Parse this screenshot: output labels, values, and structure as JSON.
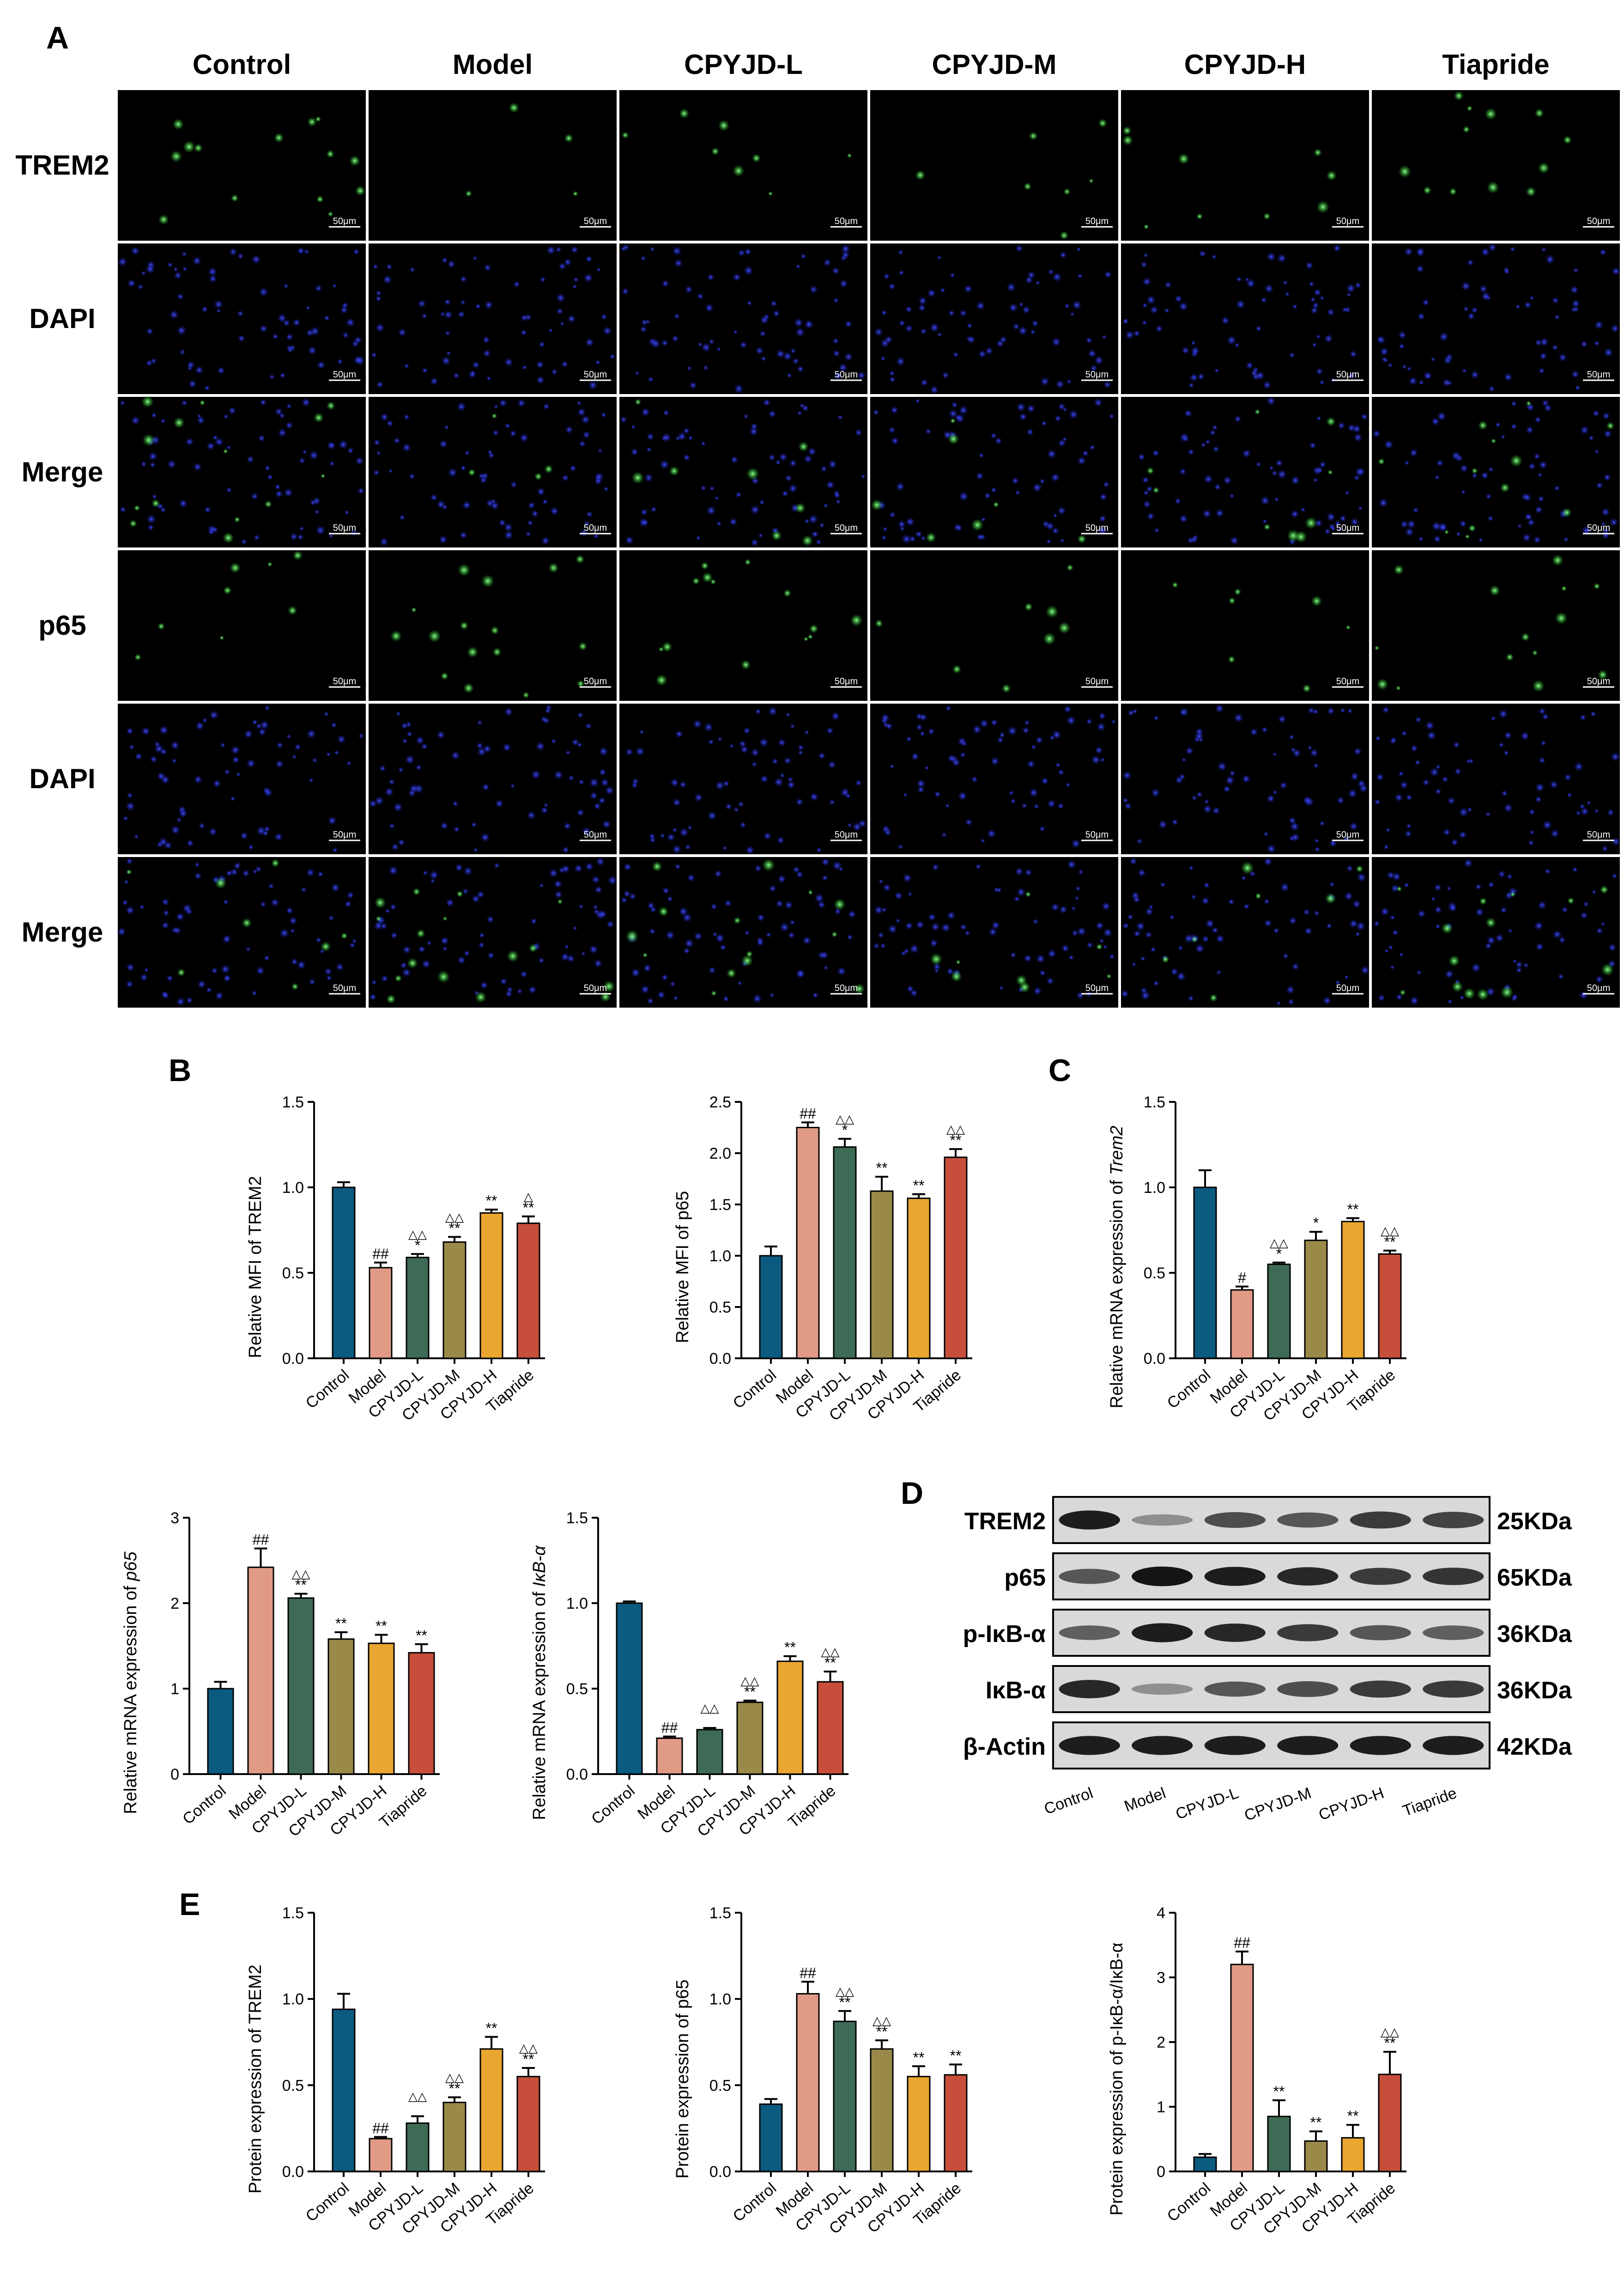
{
  "panels": {
    "A": "A",
    "B": "B",
    "C": "C",
    "D": "D",
    "E": "E"
  },
  "microscopy": {
    "columns": [
      "Control",
      "Model",
      "CPYJD-L",
      "CPYJD-M",
      "CPYJD-H",
      "Tiapride"
    ],
    "rows": [
      "TREM2",
      "DAPI",
      "Merge",
      "p65",
      "DAPI",
      "Merge"
    ],
    "scale_bar": "50μm"
  },
  "colors": {
    "Control": "#0b5a80",
    "Model": "#e19a86",
    "CPYJD-L": "#3d6b55",
    "CPYJD-M": "#9a8a4a",
    "CPYJD-H": "#e9a630",
    "Tiapride": "#c74e3a"
  },
  "western_blot": {
    "proteins": [
      "TREM2",
      "p65",
      "p-IκB-α",
      "IκB-α",
      "β-Actin"
    ],
    "sizes": [
      "25KDa",
      "65KDa",
      "36KDa",
      "36KDa",
      "42KDa"
    ],
    "lanes": [
      "Control",
      "Model",
      "CPYJD-L",
      "CPYJD-M",
      "CPYJD-H",
      "Tiapride"
    ],
    "intensity": [
      [
        0.9,
        0.3,
        0.65,
        0.6,
        0.75,
        0.7
      ],
      [
        0.6,
        0.95,
        0.9,
        0.85,
        0.75,
        0.78
      ],
      [
        0.55,
        0.9,
        0.85,
        0.75,
        0.6,
        0.55
      ],
      [
        0.85,
        0.3,
        0.6,
        0.65,
        0.75,
        0.75
      ],
      [
        0.9,
        0.9,
        0.9,
        0.9,
        0.9,
        0.9
      ]
    ]
  },
  "chart_data": [
    {
      "type": "bar",
      "panel": "B",
      "categories": [
        "Control",
        "Model",
        "CPYJD-L",
        "CPYJD-M",
        "CPYJD-H",
        "Tiapride"
      ],
      "values": [
        1.0,
        0.53,
        0.59,
        0.68,
        0.85,
        0.79
      ],
      "errors": [
        0.03,
        0.03,
        0.02,
        0.03,
        0.02,
        0.04
      ],
      "sig_top": [
        "",
        "##",
        "*",
        "**",
        "**",
        "**"
      ],
      "sig_tri": [
        "",
        "",
        "△△",
        "△△",
        "",
        "△"
      ],
      "ylabel": "Relative MFI of TREM2",
      "ylim": [
        0,
        1.5
      ],
      "ticks": [
        "0.0",
        "0.5",
        "1.0",
        "1.5"
      ]
    },
    {
      "type": "bar",
      "panel": "",
      "categories": [
        "Control",
        "Model",
        "CPYJD-L",
        "CPYJD-M",
        "CPYJD-H",
        "Tiapride"
      ],
      "values": [
        1.0,
        2.25,
        2.06,
        1.63,
        1.56,
        1.96
      ],
      "errors": [
        0.09,
        0.05,
        0.08,
        0.14,
        0.04,
        0.08
      ],
      "sig_top": [
        "",
        "##",
        "*",
        "**",
        "**",
        "**"
      ],
      "sig_tri": [
        "",
        "",
        "△△",
        "",
        "",
        "△△"
      ],
      "ylabel": "Relative MFI of p65",
      "ylim": [
        0,
        2.5
      ],
      "ticks": [
        "0.0",
        "0.5",
        "1.0",
        "1.5",
        "2.0",
        "2.5"
      ]
    },
    {
      "type": "bar",
      "panel": "C",
      "categories": [
        "Control",
        "Model",
        "CPYJD-L",
        "CPYJD-M",
        "CPYJD-H",
        "Tiapride"
      ],
      "values": [
        1.0,
        0.4,
        0.55,
        0.69,
        0.8,
        0.61
      ],
      "errors": [
        0.1,
        0.02,
        0.01,
        0.05,
        0.02,
        0.02
      ],
      "sig_top": [
        "",
        "#",
        "*",
        "*",
        "**",
        "**"
      ],
      "sig_tri": [
        "",
        "",
        "△△",
        "",
        "",
        "△△"
      ],
      "ylabel": "Relative mRNA expression of ",
      "ylabel_italic": "Trem2",
      "ylim": [
        0,
        1.5
      ],
      "ticks": [
        "0.0",
        "0.5",
        "1.0",
        "1.5"
      ]
    },
    {
      "type": "bar",
      "panel": "",
      "categories": [
        "Control",
        "Model",
        "CPYJD-L",
        "CPYJD-M",
        "CPYJD-H",
        "Tiapride"
      ],
      "values": [
        1.0,
        2.42,
        2.06,
        1.58,
        1.53,
        1.42
      ],
      "errors": [
        0.08,
        0.22,
        0.05,
        0.08,
        0.1,
        0.1
      ],
      "sig_top": [
        "",
        "##",
        "**",
        "**",
        "**",
        "**"
      ],
      "sig_tri": [
        "",
        "",
        "△△",
        "",
        "",
        ""
      ],
      "ylabel": "Relative mRNA expression of ",
      "ylabel_italic": "p65",
      "ylim": [
        0,
        3
      ],
      "ticks": [
        "0",
        "1",
        "2",
        "3"
      ]
    },
    {
      "type": "bar",
      "panel": "",
      "categories": [
        "Control",
        "Model",
        "CPYJD-L",
        "CPYJD-M",
        "CPYJD-H",
        "Tiapride"
      ],
      "values": [
        1.0,
        0.21,
        0.26,
        0.42,
        0.66,
        0.54
      ],
      "errors": [
        0.01,
        0.01,
        0.01,
        0.01,
        0.03,
        0.06
      ],
      "sig_top": [
        "",
        "##",
        "",
        "**",
        "**",
        "**"
      ],
      "sig_tri": [
        "",
        "",
        "△△",
        "△△",
        "",
        "△△"
      ],
      "ylabel": "Relative mRNA expression of ",
      "ylabel_italic": "IκB-α",
      "ylim": [
        0,
        1.5
      ],
      "ticks": [
        "0.0",
        "0.5",
        "1.0",
        "1.5"
      ]
    },
    {
      "type": "bar",
      "panel": "E",
      "categories": [
        "Control",
        "Model",
        "CPYJD-L",
        "CPYJD-M",
        "CPYJD-H",
        "Tiapride"
      ],
      "values": [
        0.94,
        0.19,
        0.28,
        0.4,
        0.71,
        0.55
      ],
      "errors": [
        0.09,
        0.01,
        0.04,
        0.03,
        0.07,
        0.05
      ],
      "sig_top": [
        "",
        "##",
        "",
        "**",
        "**",
        "**"
      ],
      "sig_tri": [
        "",
        "",
        "△△",
        "△△",
        "",
        "△△"
      ],
      "ylabel": "Protein expression of TREM2",
      "ylim": [
        0,
        1.5
      ],
      "ticks": [
        "0.0",
        "0.5",
        "1.0",
        "1.5"
      ]
    },
    {
      "type": "bar",
      "panel": "",
      "categories": [
        "Control",
        "Model",
        "CPYJD-L",
        "CPYJD-M",
        "CPYJD-H",
        "Tiapride"
      ],
      "values": [
        0.39,
        1.03,
        0.87,
        0.71,
        0.55,
        0.56
      ],
      "errors": [
        0.03,
        0.07,
        0.06,
        0.05,
        0.06,
        0.06
      ],
      "sig_top": [
        "",
        "##",
        "**",
        "**",
        "**",
        "**"
      ],
      "sig_tri": [
        "",
        "",
        "△△",
        "△△",
        "",
        ""
      ],
      "ylabel": "Protein expression of p65",
      "ylim": [
        0,
        1.5
      ],
      "ticks": [
        "0.0",
        "0.5",
        "1.0",
        "1.5"
      ]
    },
    {
      "type": "bar",
      "panel": "",
      "categories": [
        "Control",
        "Model",
        "CPYJD-L",
        "CPYJD-M",
        "CPYJD-H",
        "Tiapride"
      ],
      "values": [
        0.22,
        3.2,
        0.85,
        0.47,
        0.52,
        1.5
      ],
      "errors": [
        0.05,
        0.2,
        0.25,
        0.15,
        0.2,
        0.35
      ],
      "sig_top": [
        "",
        "##",
        "**",
        "**",
        "**",
        "**"
      ],
      "sig_tri": [
        "",
        "",
        "",
        "",
        "",
        "△△"
      ],
      "ylabel": "Protein expression of p-IκB-α/IκB-α",
      "ylim": [
        0,
        4
      ],
      "ticks": [
        "0",
        "1",
        "2",
        "3",
        "4"
      ]
    }
  ]
}
